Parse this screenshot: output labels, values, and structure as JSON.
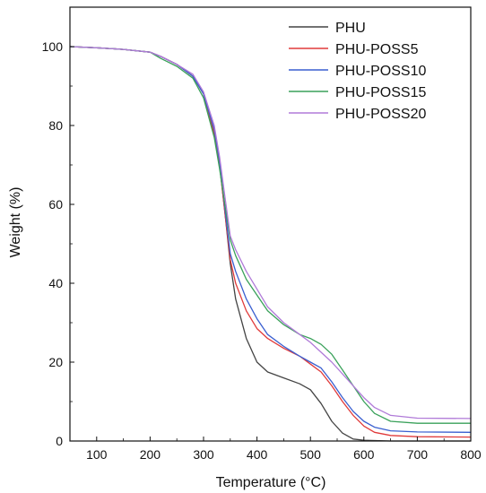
{
  "chart_data": {
    "type": "line",
    "title": "",
    "xlabel": "Temperature (°C)",
    "ylabel": "Weight (%)",
    "xlim": [
      50,
      800
    ],
    "ylim": [
      0,
      110
    ],
    "x_ticks": [
      100,
      200,
      300,
      400,
      500,
      600,
      700,
      800
    ],
    "y_ticks": [
      0,
      20,
      40,
      60,
      80,
      100
    ],
    "grid": false,
    "legend_position": "top-right",
    "series": [
      {
        "name": "PHU",
        "color": "#444444",
        "points": [
          [
            50,
            100
          ],
          [
            100,
            99.7
          ],
          [
            150,
            99.3
          ],
          [
            200,
            98.6
          ],
          [
            220,
            97.5
          ],
          [
            250,
            95.5
          ],
          [
            280,
            92.5
          ],
          [
            300,
            88
          ],
          [
            320,
            78
          ],
          [
            330,
            70
          ],
          [
            340,
            58
          ],
          [
            350,
            45
          ],
          [
            360,
            36
          ],
          [
            380,
            26
          ],
          [
            400,
            20
          ],
          [
            420,
            17.5
          ],
          [
            450,
            16
          ],
          [
            480,
            14.5
          ],
          [
            500,
            13
          ],
          [
            520,
            9.5
          ],
          [
            540,
            5
          ],
          [
            560,
            2
          ],
          [
            580,
            0.5
          ],
          [
            600,
            0.2
          ],
          [
            650,
            0
          ],
          [
            700,
            0
          ],
          [
            800,
            0
          ]
        ]
      },
      {
        "name": "PHU-POSS5",
        "color": "#e03a3a",
        "points": [
          [
            50,
            100
          ],
          [
            100,
            99.7
          ],
          [
            150,
            99.3
          ],
          [
            200,
            98.6
          ],
          [
            220,
            97.5
          ],
          [
            250,
            95.5
          ],
          [
            280,
            92.5
          ],
          [
            300,
            88
          ],
          [
            320,
            78
          ],
          [
            330,
            70
          ],
          [
            340,
            58
          ],
          [
            350,
            46
          ],
          [
            360,
            40
          ],
          [
            380,
            33
          ],
          [
            400,
            28.5
          ],
          [
            420,
            26
          ],
          [
            450,
            23.5
          ],
          [
            480,
            21.5
          ],
          [
            500,
            19.5
          ],
          [
            520,
            17.5
          ],
          [
            540,
            14
          ],
          [
            560,
            10
          ],
          [
            580,
            6.5
          ],
          [
            600,
            3.8
          ],
          [
            620,
            2.2
          ],
          [
            650,
            1.4
          ],
          [
            700,
            1.1
          ],
          [
            800,
            1.0
          ]
        ]
      },
      {
        "name": "PHU-POSS10",
        "color": "#3a5fd0",
        "points": [
          [
            50,
            100
          ],
          [
            100,
            99.7
          ],
          [
            150,
            99.3
          ],
          [
            200,
            98.6
          ],
          [
            220,
            97.5
          ],
          [
            250,
            95.5
          ],
          [
            280,
            92.5
          ],
          [
            300,
            88
          ],
          [
            320,
            79
          ],
          [
            330,
            71
          ],
          [
            340,
            59
          ],
          [
            350,
            47.5
          ],
          [
            360,
            43
          ],
          [
            380,
            36
          ],
          [
            400,
            31
          ],
          [
            420,
            27
          ],
          [
            450,
            24
          ],
          [
            480,
            21.5
          ],
          [
            500,
            20
          ],
          [
            520,
            18.5
          ],
          [
            540,
            15
          ],
          [
            560,
            11
          ],
          [
            580,
            7.5
          ],
          [
            600,
            5
          ],
          [
            620,
            3.5
          ],
          [
            650,
            2.6
          ],
          [
            700,
            2.3
          ],
          [
            800,
            2.2
          ]
        ]
      },
      {
        "name": "PHU-POSS15",
        "color": "#3aa15a",
        "points": [
          [
            50,
            100
          ],
          [
            100,
            99.7
          ],
          [
            150,
            99.3
          ],
          [
            200,
            98.6
          ],
          [
            220,
            97
          ],
          [
            250,
            95
          ],
          [
            280,
            92
          ],
          [
            300,
            87
          ],
          [
            320,
            77
          ],
          [
            330,
            69
          ],
          [
            340,
            60
          ],
          [
            350,
            51
          ],
          [
            360,
            47
          ],
          [
            380,
            41
          ],
          [
            400,
            37
          ],
          [
            420,
            33
          ],
          [
            450,
            29.5
          ],
          [
            480,
            27
          ],
          [
            500,
            26
          ],
          [
            520,
            24.5
          ],
          [
            540,
            22
          ],
          [
            560,
            18
          ],
          [
            580,
            14
          ],
          [
            600,
            10
          ],
          [
            620,
            7
          ],
          [
            650,
            5
          ],
          [
            700,
            4.5
          ],
          [
            800,
            4.5
          ]
        ]
      },
      {
        "name": "PHU-POSS20",
        "color": "#b07ad8",
        "points": [
          [
            50,
            100
          ],
          [
            100,
            99.7
          ],
          [
            150,
            99.3
          ],
          [
            200,
            98.6
          ],
          [
            220,
            97.5
          ],
          [
            250,
            95.5
          ],
          [
            280,
            93
          ],
          [
            300,
            88.5
          ],
          [
            320,
            80
          ],
          [
            330,
            72
          ],
          [
            340,
            62
          ],
          [
            350,
            52
          ],
          [
            360,
            48.5
          ],
          [
            380,
            43
          ],
          [
            400,
            38.5
          ],
          [
            420,
            34
          ],
          [
            450,
            30
          ],
          [
            480,
            27
          ],
          [
            500,
            25
          ],
          [
            520,
            22.5
          ],
          [
            540,
            20
          ],
          [
            560,
            17
          ],
          [
            580,
            14
          ],
          [
            600,
            11
          ],
          [
            620,
            8.5
          ],
          [
            650,
            6.5
          ],
          [
            700,
            5.8
          ],
          [
            800,
            5.7
          ]
        ]
      }
    ]
  }
}
